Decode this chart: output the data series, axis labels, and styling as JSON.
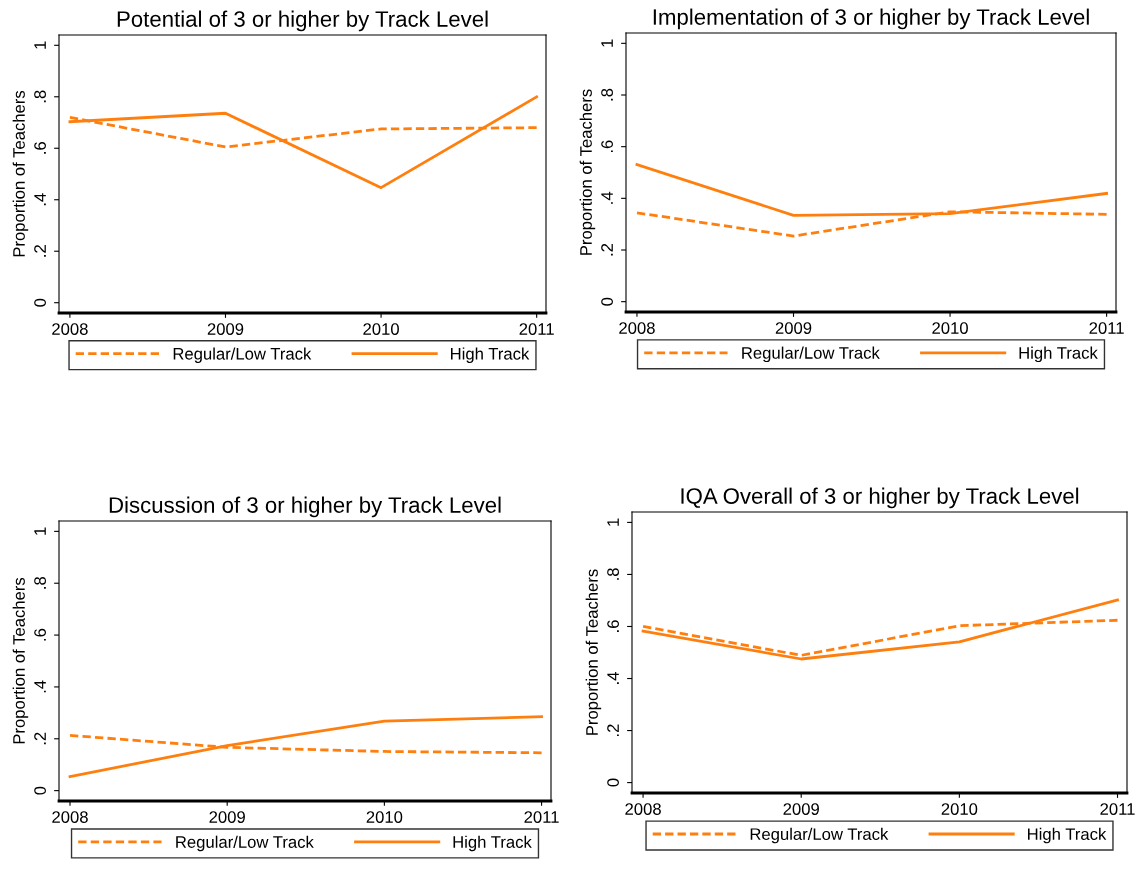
{
  "chart_data": [
    {
      "type": "line",
      "title": "Potential of 3 or higher by Track Level",
      "ylabel": "Proportion of Teachers",
      "x": [
        2008,
        2009,
        2010,
        2011
      ],
      "xlim": [
        2007.93,
        2011.06
      ],
      "xticks": [
        2008,
        2009,
        2010,
        2011
      ],
      "ylim": [
        -0.04,
        1.04
      ],
      "yticks": [
        0,
        {
          "value": 0.2,
          "label": ".2"
        },
        {
          "value": 0.4,
          "label": ".4"
        },
        {
          "value": 0.6,
          "label": ".6"
        },
        {
          "value": 0.8,
          "label": ".8"
        },
        1
      ],
      "grid": false,
      "legend": "bottom",
      "series": [
        {
          "name": "Regular/Low Track",
          "color": "#ff7f0e",
          "line_style": "dashed",
          "values": [
            0.72,
            0.605,
            0.675,
            0.68
          ]
        },
        {
          "name": "High Track",
          "color": "#ff7f0e",
          "line_style": "solid",
          "values": [
            0.703,
            0.736,
            0.447,
            0.8
          ]
        }
      ]
    },
    {
      "type": "line",
      "title": "Implementation of 3 or higher by Track Level",
      "ylabel": "Proportion of Teachers",
      "x": [
        2008,
        2009,
        2010,
        2011
      ],
      "xlim": [
        2007.93,
        2011.06
      ],
      "xticks": [
        2008,
        2009,
        2010,
        2011
      ],
      "ylim": [
        -0.04,
        1.04
      ],
      "yticks": [
        0,
        {
          "value": 0.2,
          "label": ".2"
        },
        {
          "value": 0.4,
          "label": ".4"
        },
        {
          "value": 0.6,
          "label": ".6"
        },
        {
          "value": 0.8,
          "label": ".8"
        },
        1
      ],
      "grid": false,
      "legend": "bottom",
      "series": [
        {
          "name": "Regular/Low Track",
          "color": "#ff7f0e",
          "line_style": "dashed",
          "values": [
            0.344,
            0.254,
            0.348,
            0.338
          ]
        },
        {
          "name": "High Track",
          "color": "#ff7f0e",
          "line_style": "solid",
          "values": [
            0.531,
            0.334,
            0.341,
            0.419
          ]
        }
      ]
    },
    {
      "type": "line",
      "title": "Discussion of 3 or higher by Track Level",
      "ylabel": "Proportion of Teachers",
      "x": [
        2008,
        2009,
        2010,
        2011
      ],
      "xlim": [
        2007.93,
        2011.06
      ],
      "xticks": [
        2008,
        2009,
        2010,
        2011
      ],
      "ylim": [
        -0.04,
        1.04
      ],
      "yticks": [
        0,
        {
          "value": 0.2,
          "label": ".2"
        },
        {
          "value": 0.4,
          "label": ".4"
        },
        {
          "value": 0.6,
          "label": ".6"
        },
        {
          "value": 0.8,
          "label": ".8"
        },
        1
      ],
      "grid": false,
      "legend": "bottom",
      "series": [
        {
          "name": "Regular/Low Track",
          "color": "#ff7f0e",
          "line_style": "dashed",
          "values": [
            0.213,
            0.167,
            0.151,
            0.146
          ]
        },
        {
          "name": "High Track",
          "color": "#ff7f0e",
          "line_style": "solid",
          "values": [
            0.054,
            0.174,
            0.268,
            0.285
          ]
        }
      ]
    },
    {
      "type": "line",
      "title": "IQA Overall of 3 or higher by Track Level",
      "ylabel": "Proportion of Teachers",
      "x": [
        2008,
        2009,
        2010,
        2011
      ],
      "xlim": [
        2007.93,
        2011.06
      ],
      "xticks": [
        2008,
        2009,
        2010,
        2011
      ],
      "ylim": [
        -0.04,
        1.04
      ],
      "yticks": [
        0,
        {
          "value": 0.2,
          "label": ".2"
        },
        {
          "value": 0.4,
          "label": ".4"
        },
        {
          "value": 0.6,
          "label": ".6"
        },
        {
          "value": 0.8,
          "label": ".8"
        },
        1
      ],
      "grid": false,
      "legend": "bottom",
      "series": [
        {
          "name": "Regular/Low Track",
          "color": "#ff7f0e",
          "line_style": "dashed",
          "values": [
            0.6,
            0.489,
            0.603,
            0.624
          ]
        },
        {
          "name": "High Track",
          "color": "#ff7f0e",
          "line_style": "solid",
          "values": [
            0.582,
            0.475,
            0.541,
            0.702
          ]
        }
      ]
    }
  ]
}
